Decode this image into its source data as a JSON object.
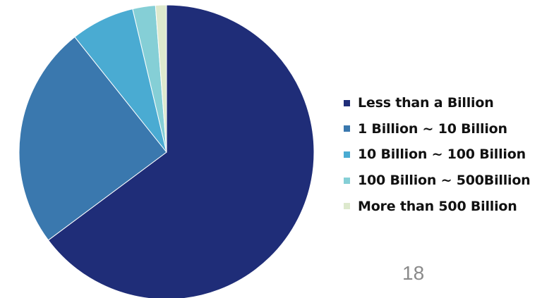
{
  "slide": {
    "page_number": "18"
  },
  "chart_data": {
    "type": "pie",
    "title": "",
    "categories": [
      "Less than a Billion",
      "1 Billion ~ 10 Billion",
      "10 Billion ~ 100 Billion",
      "100 Billion ~ 500Billion",
      "More than 500 Billion"
    ],
    "values": [
      64.8,
      24.5,
      7.0,
      2.5,
      1.2
    ],
    "unit": "%",
    "colors": [
      "#1f2d78",
      "#3a78ae",
      "#4aabd2",
      "#85cfd6",
      "#dde9cd"
    ],
    "legend_position": "right",
    "start_angle_deg": 0,
    "direction": "clockwise"
  }
}
